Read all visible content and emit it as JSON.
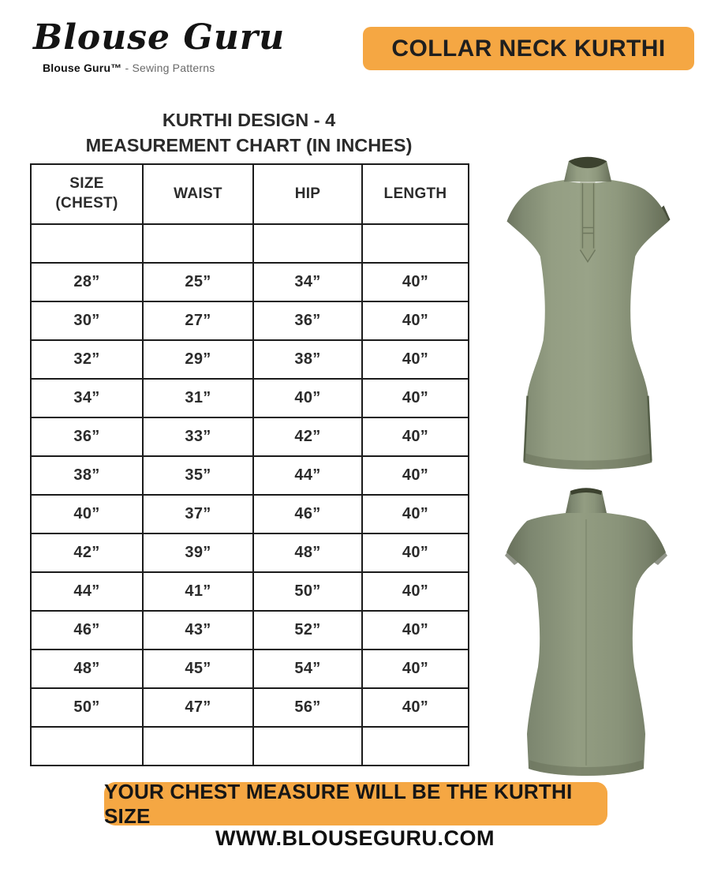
{
  "brand": {
    "logo": "Blouse Guru",
    "tagline_brand": "Blouse Guru™",
    "tagline_suffix": " - Sewing Patterns"
  },
  "badge": {
    "label": "COLLAR NECK KURTHI"
  },
  "title": {
    "line1": "KURTHI DESIGN - 4",
    "line2": "MEASUREMENT CHART (IN INCHES)"
  },
  "chart_data": {
    "type": "table",
    "title": "KURTHI DESIGN - 4 MEASUREMENT CHART (IN INCHES)",
    "unit": "inches",
    "unit_symbol": "”",
    "columns": [
      "SIZE\n(CHEST)",
      "WAIST",
      "HIP",
      "LENGTH"
    ],
    "rows": [
      [
        28,
        25,
        34,
        40
      ],
      [
        30,
        27,
        36,
        40
      ],
      [
        32,
        29,
        38,
        40
      ],
      [
        34,
        31,
        40,
        40
      ],
      [
        36,
        33,
        42,
        40
      ],
      [
        38,
        35,
        44,
        40
      ],
      [
        40,
        37,
        46,
        40
      ],
      [
        42,
        39,
        48,
        40
      ],
      [
        44,
        41,
        50,
        40
      ],
      [
        46,
        43,
        52,
        40
      ],
      [
        48,
        45,
        54,
        40
      ],
      [
        50,
        47,
        56,
        40
      ]
    ],
    "blank_rows": {
      "after_header": 1,
      "at_end": 1
    }
  },
  "footer": {
    "note": "YOUR CHEST MEASURE WILL BE THE KURTHI SIZE",
    "website": "WWW.BLOUSEGURU.COM"
  },
  "colors": {
    "accent_orange": "#F5A743",
    "text_dark": "#262626",
    "kurthi_green": "#8F997E",
    "kurthi_green_dark": "#6B735C",
    "collar_inner": "#3C422F",
    "table_border": "#1B1B1B"
  }
}
